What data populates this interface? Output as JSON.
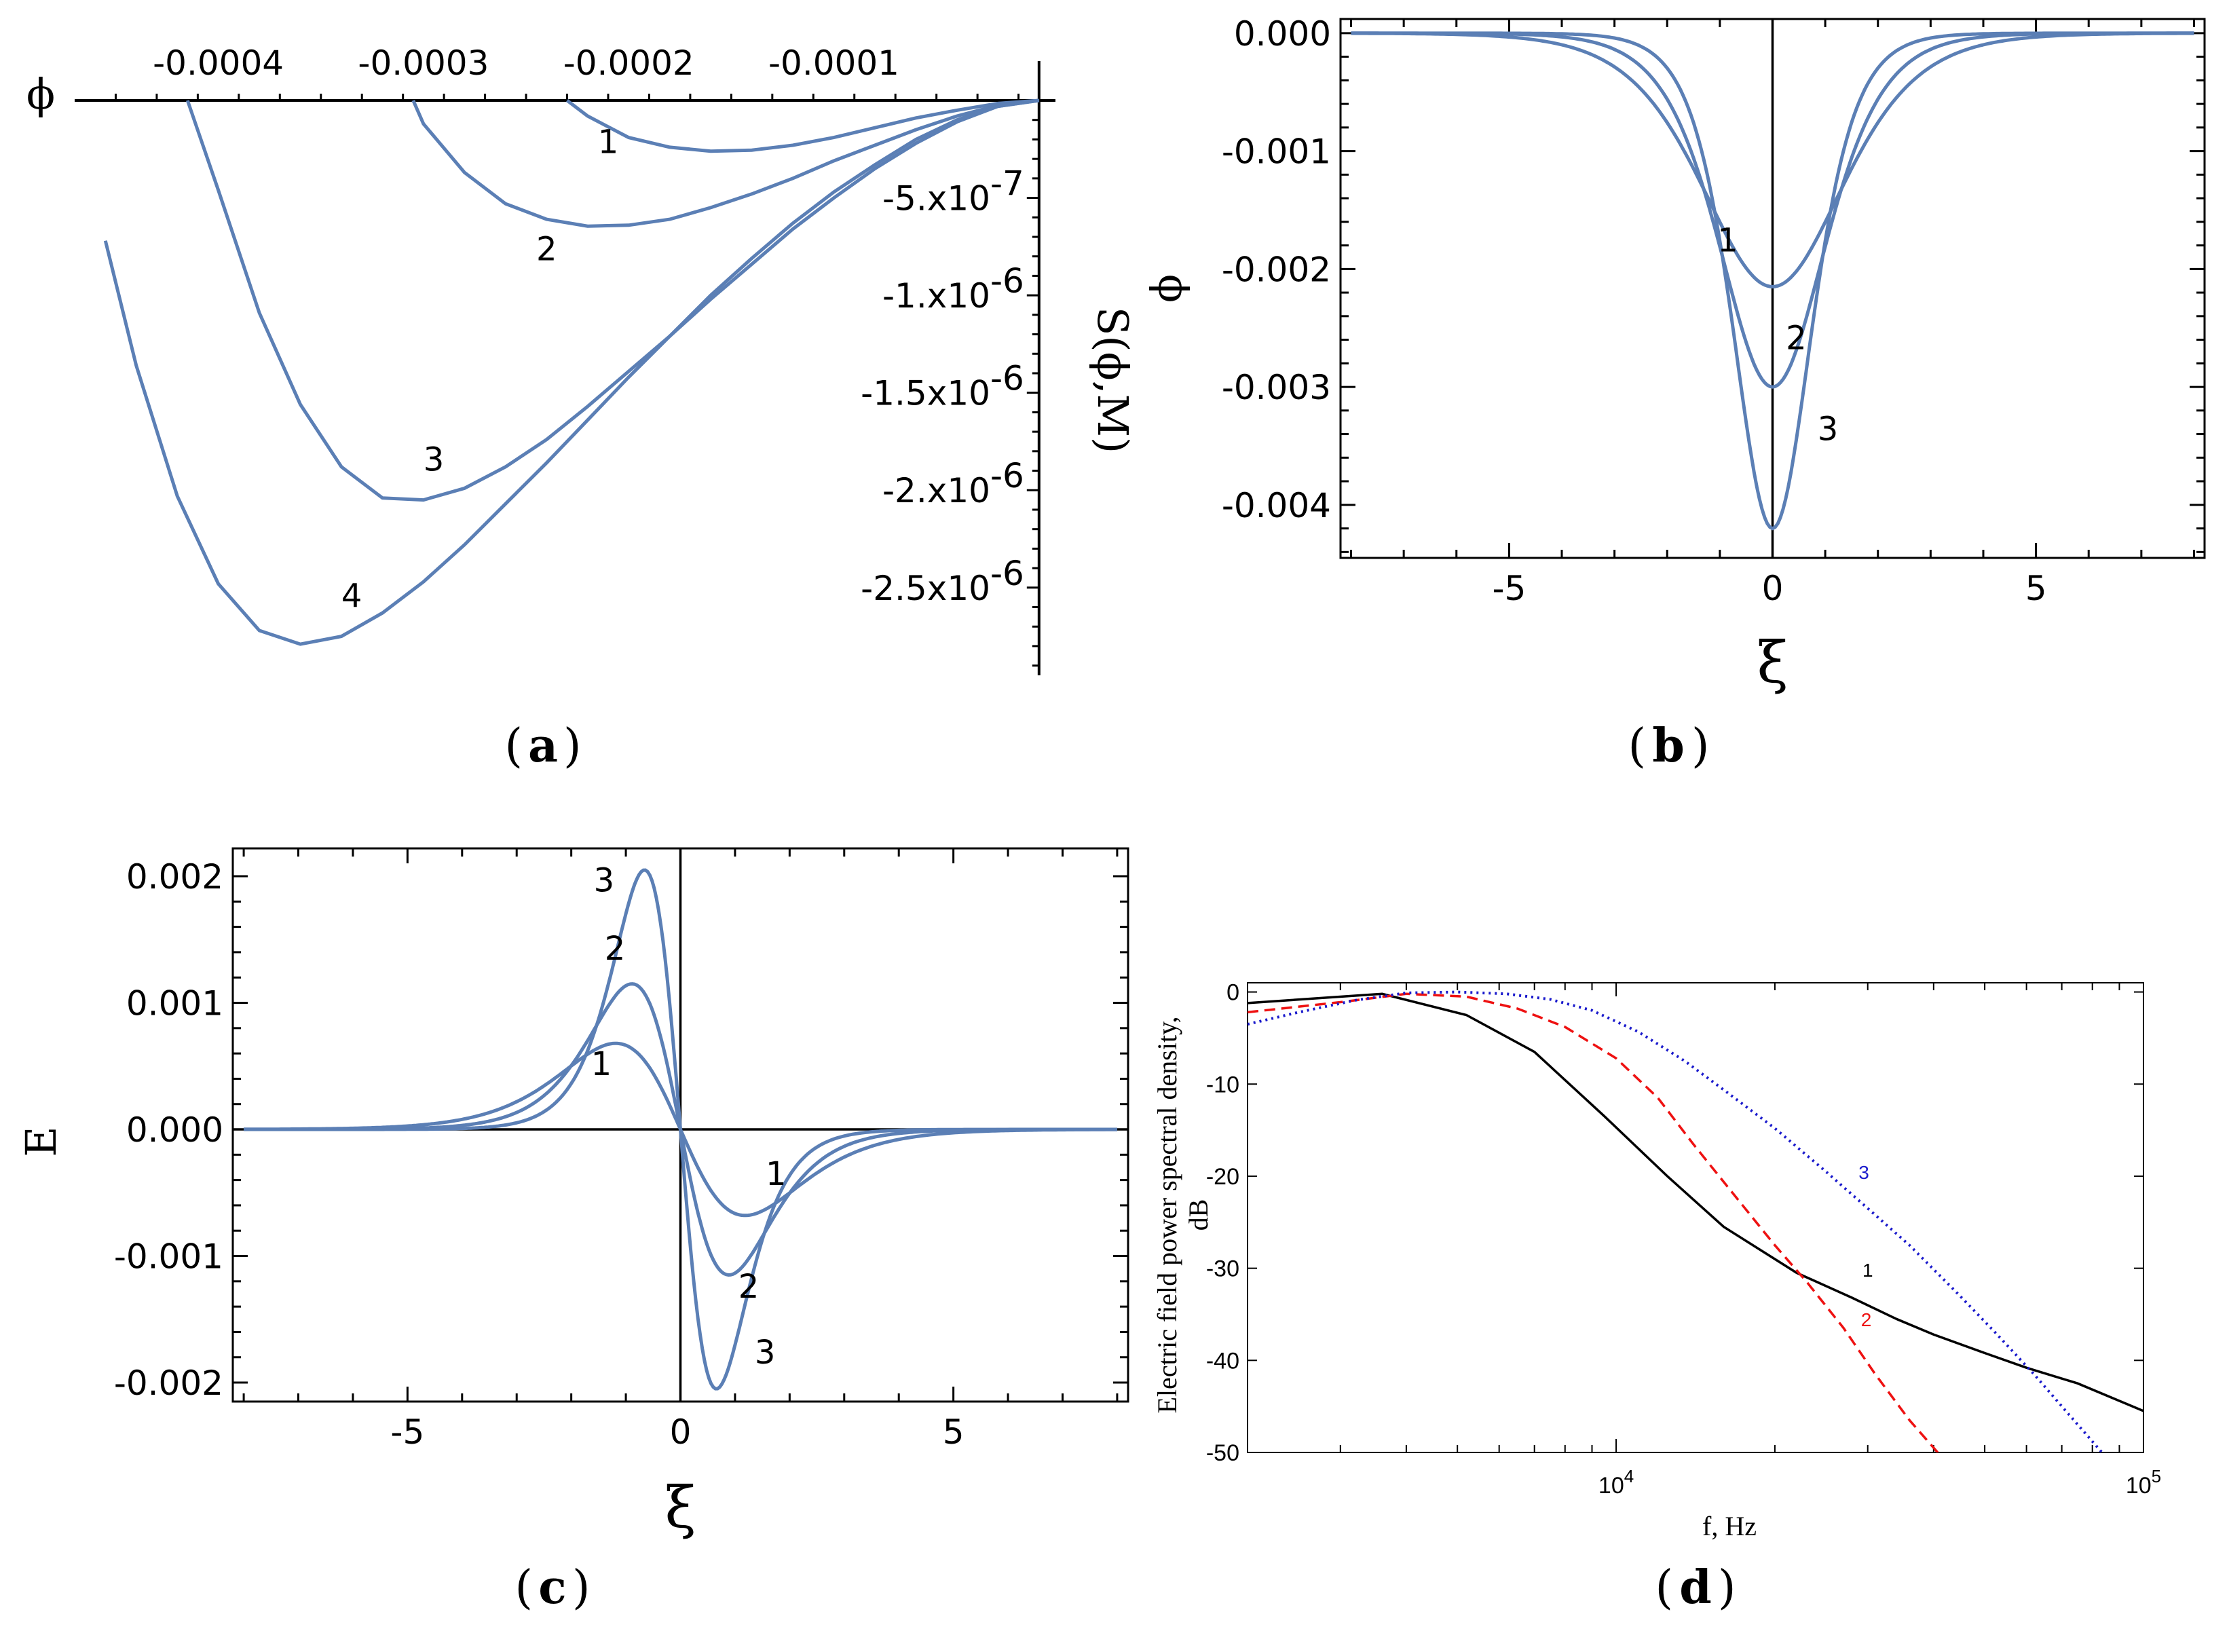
{
  "panels": {
    "a": "a",
    "b": "b",
    "c": "c",
    "d": "d"
  },
  "chart_data": [
    {
      "id": "a",
      "type": "line",
      "xlabel": "ϕ",
      "ylabel": "S(ϕ,M)",
      "x_ticks": [
        "-0.0004",
        "-0.0003",
        "-0.0002",
        "-0.0001"
      ],
      "x_tick_values": [
        -0.0004,
        -0.0003,
        -0.0002,
        -0.0001
      ],
      "y_ticks": [
        "-5.x10-7",
        "-1.x10-6",
        "-1.5x10-6",
        "-2.x10-6",
        "-2.5x10-6"
      ],
      "y_tick_values": [
        -5e-07,
        -1e-06,
        -1.5e-06,
        -2e-06,
        -2.5e-06
      ],
      "xlim": [
        -0.00047,
        8e-06
      ],
      "ylim": [
        -2.95e-06,
        0.0
      ],
      "color": "#5b7fb5",
      "series": [
        {
          "name": "1",
          "x": [
            -0.00023,
            -0.00022,
            -0.0002,
            -0.00018,
            -0.00016,
            -0.00014,
            -0.00012,
            -0.0001,
            -8e-05,
            -6e-05,
            -4e-05,
            -2e-05,
            0.0
          ],
          "y": [
            0.0,
            -8e-08,
            -1.9e-07,
            -2.4e-07,
            -2.6e-07,
            -2.55e-07,
            -2.3e-07,
            -1.9e-07,
            -1.4e-07,
            -9e-08,
            -5e-08,
            -1.5e-08,
            0.0
          ]
        },
        {
          "name": "2",
          "x": [
            -0.000305,
            -0.0003,
            -0.00028,
            -0.00026,
            -0.00024,
            -0.00022,
            -0.0002,
            -0.00018,
            -0.00016,
            -0.00014,
            -0.00012,
            -0.0001,
            -8e-05,
            -6e-05,
            -4e-05,
            -2e-05,
            0.0
          ],
          "y": [
            0.0,
            -1.2e-07,
            -3.7e-07,
            -5.3e-07,
            -6.1e-07,
            -6.45e-07,
            -6.4e-07,
            -6.1e-07,
            -5.5e-07,
            -4.8e-07,
            -4e-07,
            -3.1e-07,
            -2.3e-07,
            -1.5e-07,
            -8e-08,
            -2.5e-08,
            0.0
          ]
        },
        {
          "name": "3",
          "x": [
            -0.000415,
            -0.0004,
            -0.00038,
            -0.00036,
            -0.00034,
            -0.00032,
            -0.0003,
            -0.00028,
            -0.00026,
            -0.00024,
            -0.00022,
            -0.0002,
            -0.00018,
            -0.00016,
            -0.00014,
            -0.00012,
            -0.0001,
            -8e-05,
            -6e-05,
            -4e-05,
            -2e-05,
            0.0
          ],
          "y": [
            0.0,
            -4.6e-07,
            -1.09e-06,
            -1.56e-06,
            -1.88e-06,
            -2.04e-06,
            -2.05e-06,
            -1.99e-06,
            -1.88e-06,
            -1.74e-06,
            -1.57e-06,
            -1.39e-06,
            -1.21e-06,
            -1.02e-06,
            -8.4e-07,
            -6.6e-07,
            -5e-07,
            -3.5e-07,
            -2.2e-07,
            -1.1e-07,
            -3e-08,
            0.0
          ]
        },
        {
          "name": "4",
          "x": [
            -0.000455,
            -0.00044,
            -0.00042,
            -0.0004,
            -0.00038,
            -0.00036,
            -0.00034,
            -0.00032,
            -0.0003,
            -0.00028,
            -0.00026,
            -0.00024,
            -0.00022,
            -0.0002,
            -0.00018,
            -0.00016,
            -0.00014,
            -0.00012,
            -0.0001,
            -8e-05,
            -6e-05,
            -4e-05,
            -2e-05,
            0.0
          ],
          "y": [
            -7.2e-07,
            -1.36e-06,
            -2.03e-06,
            -2.48e-06,
            -2.72e-06,
            -2.79e-06,
            -2.75e-06,
            -2.63e-06,
            -2.47e-06,
            -2.28e-06,
            -2.07e-06,
            -1.86e-06,
            -1.64e-06,
            -1.42e-06,
            -1.21e-06,
            -1e-06,
            -8.1e-07,
            -6.3e-07,
            -4.7e-07,
            -3.3e-07,
            -2e-07,
            -1e-07,
            -3e-08,
            0.0
          ]
        }
      ],
      "curve_labels": [
        {
          "text": "1",
          "x": -0.00021,
          "y": -2.7e-07
        },
        {
          "text": "2",
          "x": -0.00024,
          "y": -8.2e-07
        },
        {
          "text": "3",
          "x": -0.000295,
          "y": -1.9e-06
        },
        {
          "text": "4",
          "x": -0.000335,
          "y": -2.6e-06
        }
      ]
    },
    {
      "id": "b",
      "type": "line",
      "xlabel": "ξ",
      "ylabel": "ϕ",
      "x_ticks": [
        "-5",
        "0",
        "5"
      ],
      "x_tick_values": [
        -5,
        0,
        5
      ],
      "y_ticks": [
        "0.000",
        "-0.001",
        "-0.002",
        "-0.003",
        "-0.004"
      ],
      "y_tick_values": [
        0.0,
        -0.001,
        -0.002,
        -0.003,
        -0.004
      ],
      "xlim": [
        -8.2,
        8.2
      ],
      "ylim": [
        -0.00445,
        0.00012
      ],
      "color": "#5b7fb5",
      "series": [
        {
          "name": "1",
          "amplitude": -0.00215,
          "width": 1.8
        },
        {
          "name": "2",
          "amplitude": -0.003,
          "width": 1.35
        },
        {
          "name": "3",
          "amplitude": -0.0042,
          "width": 1.0
        }
      ],
      "curve_labels": [
        {
          "text": "1",
          "x": -0.85,
          "y": -0.00185
        },
        {
          "text": "2",
          "x": 0.45,
          "y": -0.00268
        },
        {
          "text": "3",
          "x": 1.05,
          "y": -0.00345
        }
      ]
    },
    {
      "id": "c",
      "type": "line",
      "xlabel": "ξ",
      "ylabel": "E",
      "x_ticks": [
        "-5",
        "0",
        "5"
      ],
      "x_tick_values": [
        -5,
        0,
        5
      ],
      "y_ticks": [
        "0.002",
        "0.001",
        "0.000",
        "-0.001",
        "-0.002"
      ],
      "y_tick_values": [
        0.002,
        0.001,
        0.0,
        -0.001,
        -0.002
      ],
      "xlim": [
        -8.2,
        8.2
      ],
      "ylim": [
        -0.00215,
        0.00222
      ],
      "color": "#5b7fb5",
      "series": [
        {
          "name": "1",
          "peak": 0.00068,
          "width": 1.8
        },
        {
          "name": "2",
          "peak": 0.00115,
          "width": 1.35
        },
        {
          "name": "3",
          "peak": 0.00205,
          "width": 1.0
        }
      ],
      "curve_labels": [
        {
          "text": "3",
          "x": -1.4,
          "y": 0.00188
        },
        {
          "text": "2",
          "x": -1.2,
          "y": 0.00134
        },
        {
          "text": "1",
          "x": -1.45,
          "y": 0.00043
        },
        {
          "text": "1",
          "x": 1.75,
          "y": -0.00044
        },
        {
          "text": "2",
          "x": 1.25,
          "y": -0.00133
        },
        {
          "text": "3",
          "x": 1.55,
          "y": -0.00185
        }
      ]
    },
    {
      "id": "d",
      "type": "line",
      "xlabel": "f, Hz",
      "ylabel": "Electric field power spectral density, dB",
      "ylabel_lines": [
        "Electric field power spectral density,",
        "dB"
      ],
      "xscale": "log",
      "xlim": [
        2000,
        100000
      ],
      "ylim": [
        -50,
        1
      ],
      "x_ticks": [
        "10",
        "10"
      ],
      "x_tick_exponents": [
        "4",
        "5"
      ],
      "x_tick_values": [
        10000,
        100000
      ],
      "y_ticks": [
        "0",
        "-10",
        "-20",
        "-30",
        "-40",
        "-50"
      ],
      "y_tick_values": [
        0,
        -10,
        -20,
        -30,
        -40,
        -50
      ],
      "series": [
        {
          "name": "1",
          "color": "#000000",
          "dash": "solid",
          "x": [
            2000,
            3600,
            5200,
            7000,
            9500,
            12500,
            16000,
            22000,
            28000,
            34000,
            40000,
            50000,
            60000,
            75000,
            100000
          ],
          "y": [
            -1.2,
            -0.2,
            -2.5,
            -6.5,
            -13.5,
            -20,
            -25.5,
            -30.5,
            -33.2,
            -35.5,
            -37.2,
            -39.2,
            -40.8,
            -42.5,
            -45.5
          ]
        },
        {
          "name": "2",
          "color": "#ee1111",
          "dash": "dashed",
          "x": [
            2000,
            3000,
            4000,
            5200,
            6500,
            8000,
            10000,
            12000,
            14000,
            17000,
            20000,
            23000,
            27000,
            31000,
            36000,
            41000
          ],
          "y": [
            -2.2,
            -1.1,
            -0.2,
            -0.5,
            -1.8,
            -3.8,
            -7.2,
            -11.5,
            -16.5,
            -22.5,
            -27.5,
            -31.5,
            -36.5,
            -41.5,
            -46.5,
            -50.2
          ]
        },
        {
          "name": "3",
          "color": "#1a1acc",
          "dash": "dotted",
          "x": [
            2000,
            2500,
            3200,
            4000,
            5000,
            6200,
            7500,
            9000,
            11000,
            13500,
            16500,
            20000,
            25000,
            30000,
            36000,
            44000,
            52000,
            62000,
            72000,
            84000
          ],
          "y": [
            -3.5,
            -2.2,
            -0.9,
            -0.1,
            0.0,
            -0.2,
            -0.8,
            -2.0,
            -4.3,
            -7.5,
            -11.2,
            -14.8,
            -19.5,
            -23.5,
            -27.5,
            -32.5,
            -36.8,
            -41.5,
            -45.8,
            -50.2
          ]
        }
      ],
      "curve_labels": [
        {
          "text": "3",
          "color": "#1a1acc",
          "x": 29500,
          "y": -20.3
        },
        {
          "text": "1",
          "color": "#000000",
          "x": 30000,
          "y": -30.9
        },
        {
          "text": "2",
          "color": "#ee1111",
          "x": 29800,
          "y": -36.3
        }
      ]
    }
  ]
}
